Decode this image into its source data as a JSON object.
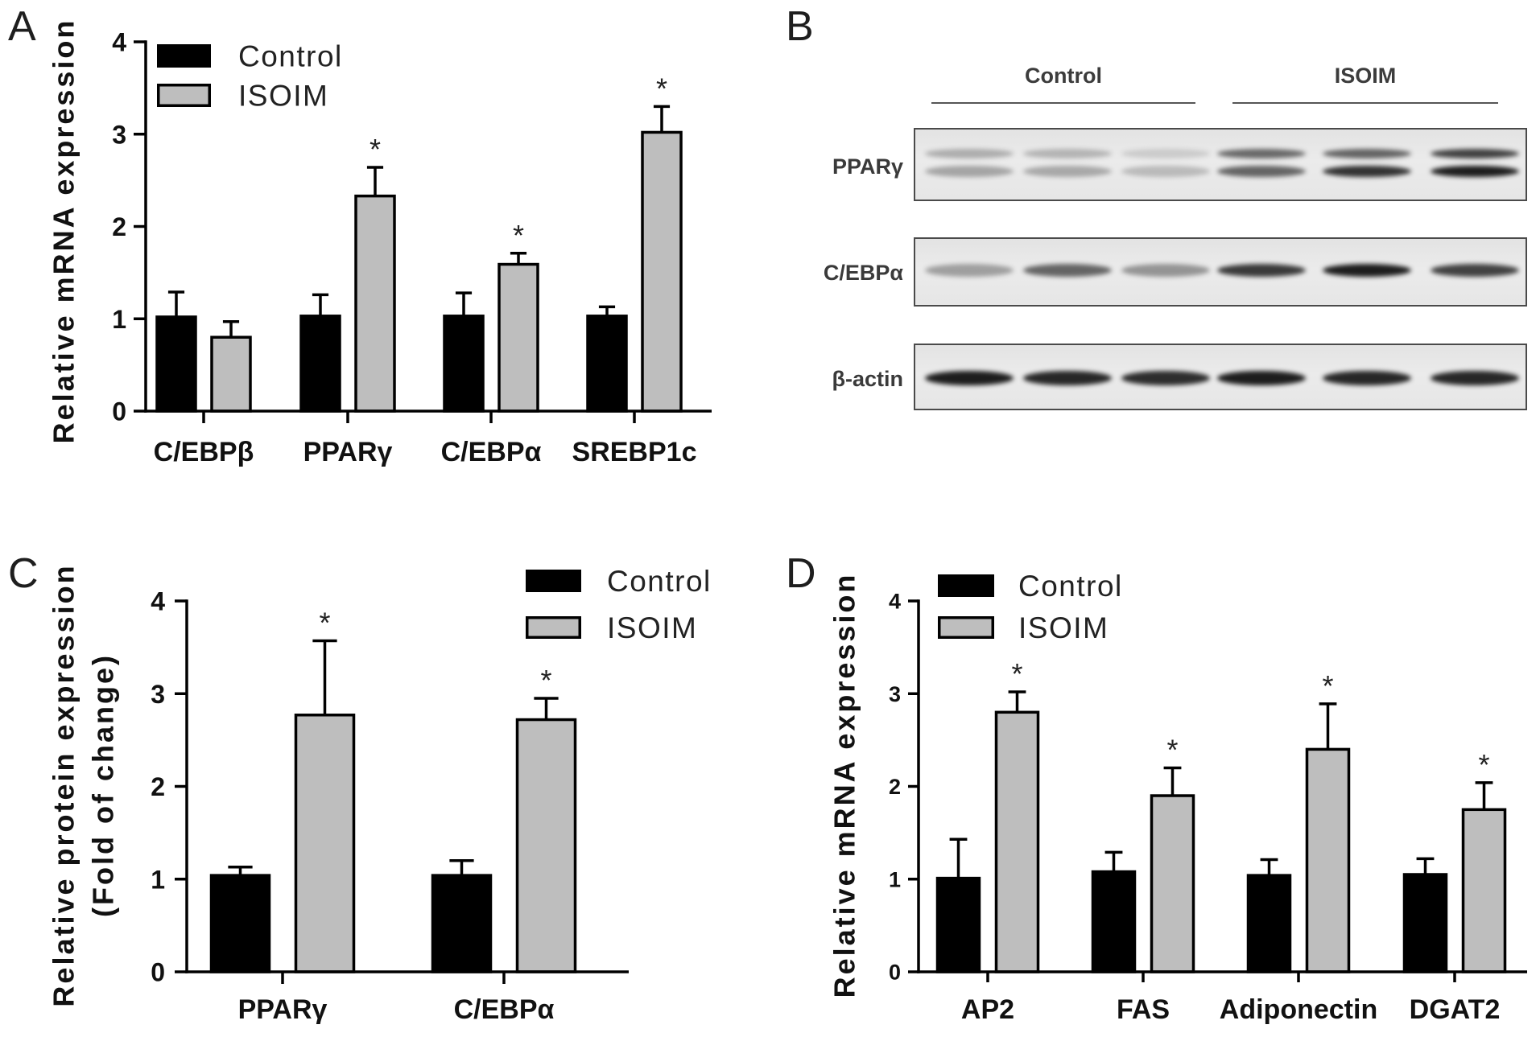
{
  "colors": {
    "control": "#000000",
    "isoim": "#bebebe",
    "axis": "#000000"
  },
  "chart_data": [
    {
      "panel": "A",
      "type": "bar",
      "categories": [
        "C/EBPβ",
        "PPARγ",
        "C/EBPα",
        "SREBP1c"
      ],
      "series": [
        {
          "name": "Control",
          "values": [
            1.02,
            1.03,
            1.03,
            1.03
          ],
          "error": [
            0.27,
            0.23,
            0.25,
            0.1
          ]
        },
        {
          "name": "ISOIM",
          "values": [
            0.8,
            2.33,
            1.59,
            3.02
          ],
          "error": [
            0.17,
            0.31,
            0.12,
            0.28
          ],
          "labels": [
            "",
            "*",
            "*",
            "*"
          ]
        }
      ],
      "xlabel": "",
      "ylabel": [
        "Relative mRNA expression"
      ],
      "ylim": [
        0,
        4
      ],
      "yticks": [
        0,
        1,
        2,
        3,
        4
      ],
      "legend": "top-left",
      "grid": false
    },
    {
      "panel": "C",
      "type": "bar",
      "categories": [
        "PPARγ",
        "C/EBPα"
      ],
      "series": [
        {
          "name": "Control",
          "values": [
            1.04,
            1.04
          ],
          "error": [
            0.09,
            0.16
          ]
        },
        {
          "name": "ISOIM",
          "values": [
            2.77,
            2.72
          ],
          "error": [
            0.8,
            0.23
          ],
          "labels": [
            "*",
            "*"
          ]
        }
      ],
      "xlabel": "",
      "ylabel": [
        "Relative protein expression",
        "(Fold of change)"
      ],
      "ylim": [
        0,
        4
      ],
      "yticks": [
        0,
        1,
        2,
        3,
        4
      ],
      "legend": "top-right",
      "grid": false
    },
    {
      "panel": "D",
      "type": "bar",
      "categories": [
        "AP2",
        "FAS",
        "Adiponectin",
        "DGAT2"
      ],
      "series": [
        {
          "name": "Control",
          "values": [
            1.01,
            1.08,
            1.04,
            1.05
          ],
          "error": [
            0.42,
            0.21,
            0.17,
            0.17
          ]
        },
        {
          "name": "ISOIM",
          "values": [
            2.8,
            1.9,
            2.4,
            1.75
          ],
          "error": [
            0.22,
            0.3,
            0.49,
            0.29
          ],
          "labels": [
            "*",
            "*",
            "*",
            "*"
          ]
        }
      ],
      "xlabel": "",
      "ylabel": [
        "Relative mRNA expression"
      ],
      "ylim": [
        0,
        4
      ],
      "yticks": [
        0,
        1,
        2,
        3,
        4
      ],
      "legend": "top-left",
      "grid": false
    }
  ],
  "blot": {
    "panel": "B",
    "groups": [
      "Control",
      "ISOIM"
    ],
    "rows": [
      {
        "label": "PPARγ",
        "band_intensity": [
          [
            0.28,
            0.25,
            0.14,
            0.6,
            0.62,
            0.78
          ],
          [
            0.32,
            0.3,
            0.22,
            0.62,
            0.85,
            0.95
          ]
        ]
      },
      {
        "label": "C/EBPα",
        "band_intensity": [
          [
            0.35,
            0.62,
            0.4,
            0.82,
            0.95,
            0.78
          ]
        ]
      },
      {
        "label": "β-actin",
        "band_intensity": [
          [
            0.95,
            0.9,
            0.88,
            0.95,
            0.9,
            0.9
          ]
        ]
      }
    ]
  }
}
